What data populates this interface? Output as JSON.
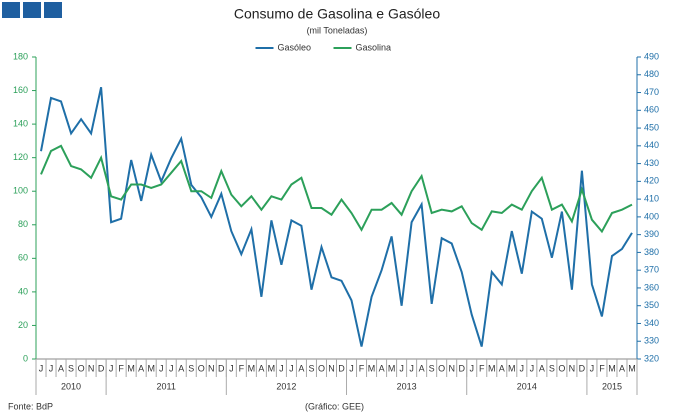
{
  "chart_data": {
    "type": "line",
    "title": "Consumo de Gasolina e Gasóleo",
    "subtitle": "(mil Toneladas)",
    "source": "Fonte: BdP",
    "credit": "(Gráfico: GEE)",
    "categories": [
      "J",
      "J",
      "A",
      "S",
      "O",
      "N",
      "D",
      "J",
      "F",
      "M",
      "A",
      "M",
      "J",
      "J",
      "A",
      "S",
      "O",
      "N",
      "D",
      "J",
      "F",
      "M",
      "A",
      "M",
      "J",
      "J",
      "A",
      "S",
      "O",
      "N",
      "D",
      "J",
      "F",
      "M",
      "A",
      "M",
      "J",
      "J",
      "A",
      "S",
      "O",
      "N",
      "D",
      "J",
      "F",
      "M",
      "A",
      "M",
      "J",
      "J",
      "A",
      "S",
      "O",
      "N",
      "D",
      "J",
      "F",
      "M",
      "A",
      "M"
    ],
    "years": [
      "2010",
      "2011",
      "2012",
      "2013",
      "2014",
      "2015"
    ],
    "series": [
      {
        "name": "Gasóleo",
        "color": "#1f6fa8",
        "axis": "y2",
        "values": [
          437,
          467,
          465,
          447,
          455,
          447,
          473,
          397,
          399,
          432,
          409,
          435,
          420,
          433,
          444,
          418,
          411,
          400,
          413,
          392,
          379,
          393,
          355,
          398,
          373,
          398,
          395,
          359,
          383,
          366,
          364,
          353,
          327,
          355,
          370,
          389,
          350,
          397,
          407,
          351,
          388,
          385,
          369,
          345,
          327,
          369,
          362,
          392,
          368,
          403,
          399,
          377,
          403,
          359,
          426,
          362,
          344,
          378,
          382,
          391
        ]
      },
      {
        "name": "Gasolina",
        "color": "#2ca05a",
        "axis": "y",
        "values": [
          110,
          124,
          127,
          115,
          113,
          108,
          120,
          97,
          95,
          104,
          104,
          102,
          104,
          111,
          118,
          100,
          100,
          96,
          112,
          98,
          91,
          97,
          89,
          97,
          95,
          104,
          108,
          90,
          90,
          86,
          95,
          87,
          77,
          89,
          89,
          93,
          86,
          100,
          109,
          87,
          89,
          88,
          91,
          81,
          77,
          88,
          87,
          92,
          89,
          100,
          108,
          89,
          92,
          82,
          101,
          83,
          76,
          87,
          89,
          92
        ]
      }
    ],
    "ylim": [
      0,
      180
    ],
    "yticks": [
      0,
      20,
      40,
      60,
      80,
      100,
      120,
      140,
      160,
      180
    ],
    "y2lim": [
      320,
      490
    ],
    "y2ticks": [
      320,
      330,
      340,
      350,
      360,
      370,
      380,
      390,
      400,
      410,
      420,
      430,
      440,
      450,
      460,
      470,
      480,
      490
    ],
    "grid": false,
    "legend": "top"
  }
}
